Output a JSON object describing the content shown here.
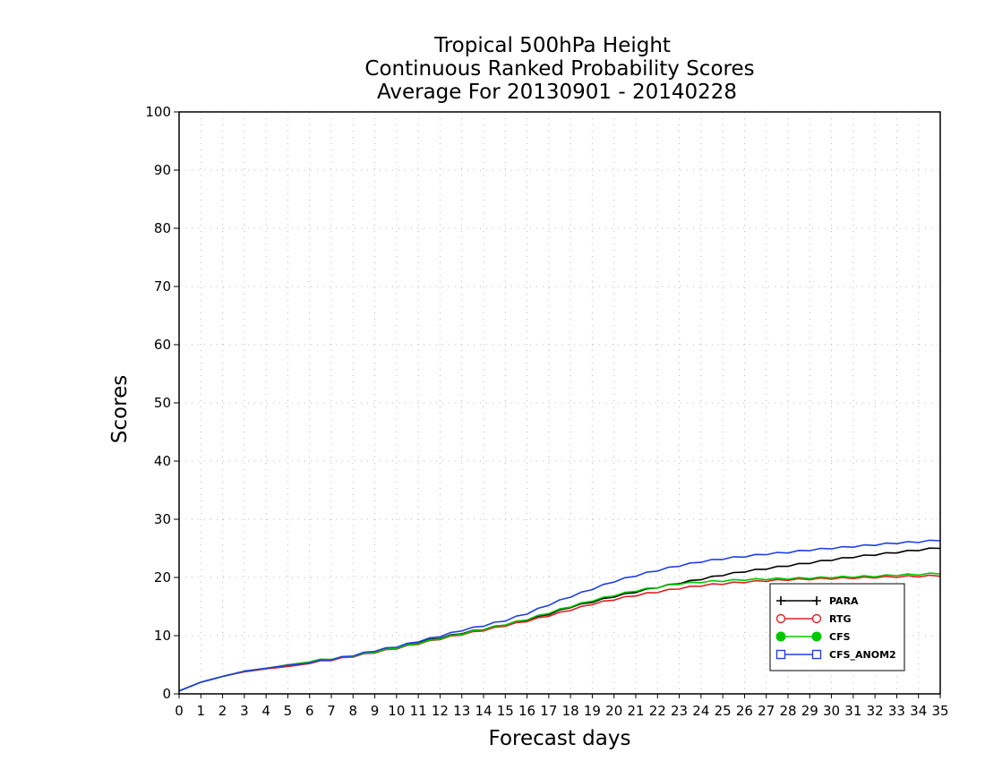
{
  "chart_data": {
    "type": "line",
    "title": [
      "Tropical 500hPa Height",
      "Continuous Ranked Probability Scores",
      "Average For 20130901 - 20140228"
    ],
    "xlabel": "Forecast days",
    "ylabel": "Scores",
    "xlim": [
      0,
      35
    ],
    "ylim": [
      0,
      100
    ],
    "xticks": [
      "0",
      "1",
      "2",
      "3",
      "4",
      "5",
      "6",
      "7",
      "8",
      "9",
      "10",
      "11",
      "12",
      "13",
      "14",
      "15",
      "16",
      "17",
      "18",
      "19",
      "20",
      "21",
      "22",
      "23",
      "24",
      "25",
      "26",
      "27",
      "28",
      "29",
      "30",
      "31",
      "32",
      "33",
      "34",
      "35"
    ],
    "yticks": [
      "0",
      "10",
      "20",
      "30",
      "40",
      "50",
      "60",
      "70",
      "80",
      "90",
      "100"
    ],
    "grid": true,
    "legend_position": "bottom-right",
    "x": [
      0,
      1,
      2,
      3,
      4,
      5,
      6,
      7,
      8,
      9,
      10,
      11,
      12,
      13,
      14,
      15,
      16,
      17,
      18,
      19,
      20,
      21,
      22,
      23,
      24,
      25,
      26,
      27,
      28,
      29,
      30,
      31,
      32,
      33,
      34,
      35
    ],
    "series": [
      {
        "name": "PARA",
        "color": "#000000",
        "marker": "plus",
        "values": [
          0.5,
          2.0,
          3.0,
          3.8,
          4.3,
          4.8,
          5.3,
          5.8,
          6.4,
          7.2,
          7.9,
          8.7,
          9.5,
          10.3,
          11.0,
          11.8,
          12.6,
          13.6,
          14.8,
          15.7,
          16.6,
          17.4,
          18.2,
          18.9,
          19.6,
          20.3,
          20.9,
          21.4,
          21.9,
          22.4,
          22.9,
          23.4,
          23.8,
          24.2,
          24.6,
          25.0
        ]
      },
      {
        "name": "RTG",
        "color": "#e02020",
        "marker": "circle-open",
        "values": [
          0.5,
          2.0,
          3.0,
          3.8,
          4.3,
          4.7,
          5.2,
          5.7,
          6.3,
          7.0,
          7.7,
          8.5,
          9.3,
          10.1,
          10.8,
          11.6,
          12.4,
          13.3,
          14.3,
          15.3,
          16.1,
          16.8,
          17.4,
          18.0,
          18.5,
          18.8,
          19.1,
          19.3,
          19.5,
          19.6,
          19.7,
          19.8,
          19.9,
          20.0,
          20.1,
          20.2
        ]
      },
      {
        "name": "CFS",
        "color": "#00c800",
        "marker": "circle-filled",
        "values": [
          0.5,
          2.0,
          3.0,
          3.9,
          4.4,
          5.0,
          5.5,
          5.9,
          6.4,
          7.1,
          7.8,
          8.6,
          9.4,
          10.2,
          11.0,
          11.8,
          12.7,
          13.8,
          14.9,
          15.9,
          16.8,
          17.6,
          18.2,
          18.8,
          19.1,
          19.3,
          19.5,
          19.6,
          19.7,
          19.8,
          19.9,
          20.0,
          20.1,
          20.3,
          20.4,
          20.6
        ]
      },
      {
        "name": "CFS_ANOM2",
        "color": "#2040e0",
        "marker": "square-open",
        "values": [
          0.5,
          2.0,
          3.0,
          3.9,
          4.4,
          4.9,
          5.3,
          5.8,
          6.5,
          7.3,
          8.0,
          8.9,
          9.8,
          10.8,
          11.6,
          12.5,
          13.7,
          15.2,
          16.6,
          17.9,
          19.2,
          20.2,
          21.1,
          21.9,
          22.6,
          23.1,
          23.5,
          23.9,
          24.2,
          24.6,
          24.9,
          25.2,
          25.5,
          25.8,
          26.0,
          26.3
        ]
      }
    ]
  }
}
